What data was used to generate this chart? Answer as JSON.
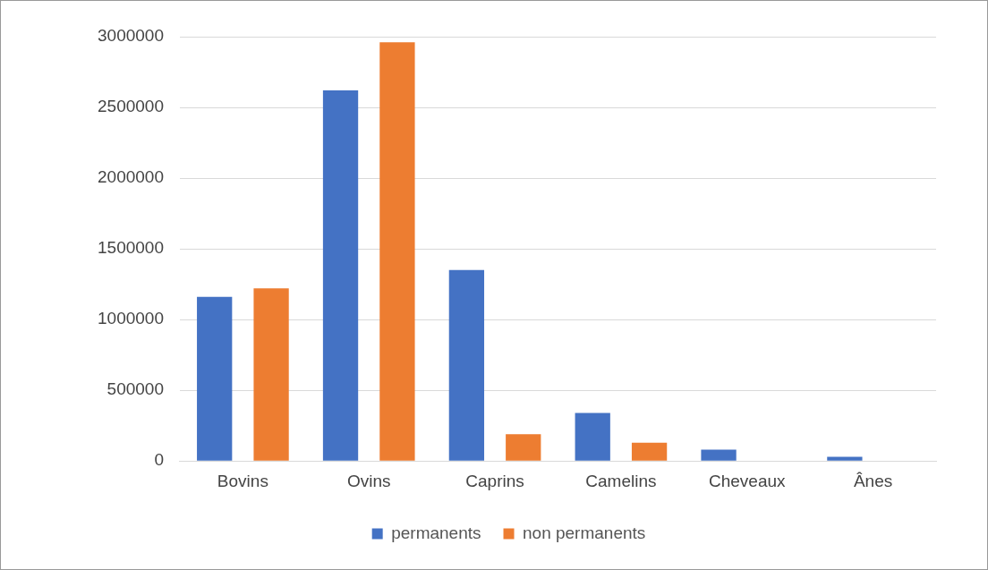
{
  "chart_data": {
    "type": "bar",
    "categories": [
      "Bovins",
      "Ovins",
      "Caprins",
      "Camelins",
      "Cheveaux",
      "Ânes"
    ],
    "series": [
      {
        "name": "permanents",
        "color": "#4472c4",
        "values": [
          1160000,
          2620000,
          1350000,
          340000,
          80000,
          30000
        ]
      },
      {
        "name": "non permanents",
        "color": "#ed7d31",
        "values": [
          1220000,
          2960000,
          190000,
          130000,
          0,
          0
        ]
      }
    ],
    "ylim": [
      0,
      3000000
    ],
    "yticks": [
      0,
      500000,
      1000000,
      1500000,
      2000000,
      2500000,
      3000000
    ],
    "grid": "y",
    "legend": "bottom"
  }
}
